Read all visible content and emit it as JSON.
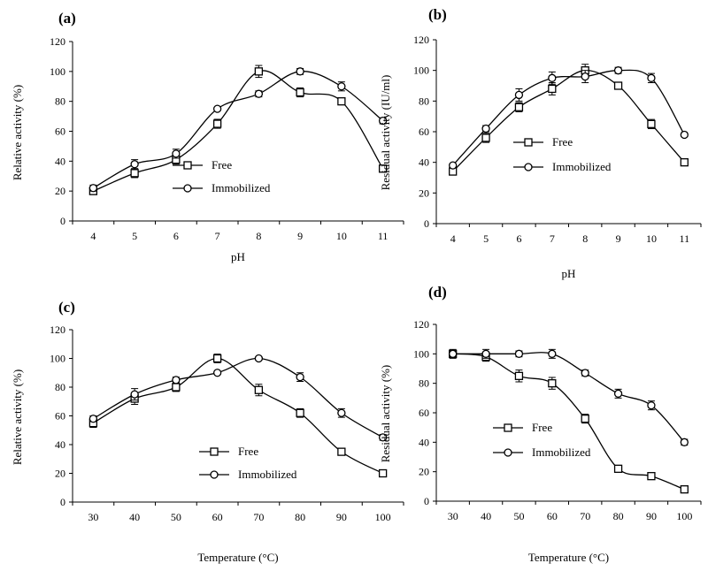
{
  "chart_data": [
    {
      "panel_label": "(a)",
      "type": "line",
      "xlabel": "pH",
      "ylabel": "Relative activity (%)",
      "categories": [
        "4",
        "5",
        "6",
        "7",
        "8",
        "9",
        "10",
        "11"
      ],
      "ylim": [
        0,
        120
      ],
      "yticks": [
        "0",
        "20",
        "40",
        "60",
        "80",
        "100",
        "120"
      ],
      "legend": "center-left",
      "grid": false,
      "series": [
        {
          "name": "Free",
          "marker": "square",
          "values": [
            20,
            32,
            41,
            65,
            100,
            86,
            80,
            35
          ],
          "errors": [
            2,
            3,
            3,
            3,
            4,
            3,
            2,
            1
          ]
        },
        {
          "name": "Immobilized",
          "marker": "circle",
          "values": [
            22,
            38,
            45,
            75,
            85,
            100,
            90,
            67
          ],
          "errors": [
            2,
            3,
            3,
            1,
            2,
            2,
            3,
            2
          ]
        }
      ]
    },
    {
      "panel_label": "(b)",
      "type": "line",
      "xlabel": "pH",
      "ylabel": "Residual activity (IU/ml)",
      "categories": [
        "4",
        "5",
        "6",
        "7",
        "8",
        "9",
        "10",
        "11"
      ],
      "ylim": [
        0,
        120
      ],
      "yticks": [
        "0",
        "20",
        "40",
        "60",
        "80",
        "100",
        "120"
      ],
      "legend": "center",
      "grid": false,
      "series": [
        {
          "name": "Free",
          "marker": "square",
          "values": [
            34,
            56,
            76,
            88,
            100,
            90,
            65,
            40
          ],
          "errors": [
            2,
            3,
            3,
            4,
            4,
            2,
            3,
            2
          ]
        },
        {
          "name": "Immobilized",
          "marker": "circle",
          "values": [
            38,
            62,
            84,
            95,
            96,
            100,
            95,
            58
          ],
          "errors": [
            1,
            2,
            4,
            4,
            4,
            2,
            3,
            1
          ]
        }
      ]
    },
    {
      "panel_label": "(c)",
      "type": "line",
      "xlabel": "Temperature (°C)",
      "ylabel": "Relative activity (%)",
      "categories": [
        "30",
        "40",
        "50",
        "60",
        "70",
        "80",
        "90",
        "100"
      ],
      "ylim": [
        0,
        120
      ],
      "yticks": [
        "0",
        "20",
        "40",
        "60",
        "80",
        "100",
        "120"
      ],
      "legend": "bottom-center",
      "grid": false,
      "series": [
        {
          "name": "Free",
          "marker": "square",
          "values": [
            55,
            72,
            80,
            100,
            78,
            62,
            35,
            20
          ],
          "errors": [
            3,
            4,
            3,
            3,
            4,
            3,
            2,
            1
          ]
        },
        {
          "name": "Immobilized",
          "marker": "circle",
          "values": [
            58,
            75,
            85,
            90,
            100,
            87,
            62,
            45
          ],
          "errors": [
            2,
            4,
            2,
            1,
            1,
            3,
            3,
            2
          ]
        }
      ]
    },
    {
      "panel_label": "(d)",
      "type": "line",
      "xlabel": "Temperature (°C)",
      "ylabel": "Residual activity (%)",
      "categories": [
        "30",
        "40",
        "50",
        "60",
        "70",
        "80",
        "90",
        "100"
      ],
      "ylim": [
        0,
        120
      ],
      "yticks": [
        "0",
        "20",
        "40",
        "60",
        "80",
        "100",
        "120"
      ],
      "legend": "bottom-left",
      "grid": false,
      "series": [
        {
          "name": "Free",
          "marker": "square",
          "values": [
            100,
            98,
            85,
            80,
            56,
            22,
            17,
            8
          ],
          "errors": [
            3,
            3,
            4,
            4,
            3,
            2,
            2,
            2
          ]
        },
        {
          "name": "Immobilized",
          "marker": "circle",
          "values": [
            100,
            100,
            100,
            100,
            87,
            73,
            65,
            40
          ],
          "errors": [
            2,
            3,
            2,
            3,
            2,
            3,
            3,
            2
          ]
        }
      ]
    }
  ]
}
